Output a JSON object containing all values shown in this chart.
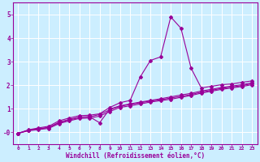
{
  "xlabel": "Windchill (Refroidissement éolien,°C)",
  "bg_color": "#cceeff",
  "line_color": "#990099",
  "grid_color": "#ffffff",
  "x_data": [
    0,
    1,
    2,
    3,
    4,
    5,
    6,
    7,
    8,
    9,
    10,
    11,
    12,
    13,
    14,
    15,
    16,
    17,
    18,
    19,
    20,
    21,
    22,
    23
  ],
  "series": [
    [
      -0.05,
      0.1,
      0.18,
      0.25,
      0.48,
      0.6,
      0.7,
      0.72,
      0.78,
      1.05,
      1.25,
      1.35,
      2.35,
      3.05,
      3.2,
      4.9,
      4.42,
      2.72,
      1.88,
      1.95,
      2.02,
      2.05,
      2.12,
      2.18
    ],
    [
      -0.05,
      0.08,
      0.14,
      0.2,
      0.42,
      0.54,
      0.64,
      0.66,
      0.4,
      0.98,
      1.12,
      1.2,
      1.28,
      1.35,
      1.42,
      1.5,
      1.58,
      1.65,
      1.75,
      1.82,
      1.9,
      1.96,
      2.02,
      2.1
    ],
    [
      -0.05,
      0.08,
      0.14,
      0.2,
      0.4,
      0.52,
      0.62,
      0.65,
      0.75,
      0.95,
      1.1,
      1.18,
      1.25,
      1.32,
      1.38,
      1.45,
      1.52,
      1.6,
      1.7,
      1.78,
      1.86,
      1.92,
      1.98,
      2.06
    ],
    [
      -0.05,
      0.06,
      0.11,
      0.16,
      0.36,
      0.48,
      0.58,
      0.6,
      0.68,
      0.88,
      1.05,
      1.12,
      1.2,
      1.28,
      1.34,
      1.4,
      1.48,
      1.56,
      1.66,
      1.74,
      1.82,
      1.88,
      1.94,
      2.02
    ]
  ],
  "ylim": [
    -0.5,
    5.5
  ],
  "xlim": [
    -0.5,
    23.5
  ],
  "yticks": [
    0,
    1,
    2,
    3,
    4,
    5
  ],
  "ytick_labels": [
    "-0",
    "1",
    "2",
    "3",
    "4",
    "5"
  ],
  "xticks": [
    0,
    1,
    2,
    3,
    4,
    5,
    6,
    7,
    8,
    9,
    10,
    11,
    12,
    13,
    14,
    15,
    16,
    17,
    18,
    19,
    20,
    21,
    22,
    23
  ],
  "marker_size": 2.0,
  "line_width": 0.8,
  "xlabel_fontsize": 5.5,
  "tick_fontsize_x": 4.5,
  "tick_fontsize_y": 5.5
}
